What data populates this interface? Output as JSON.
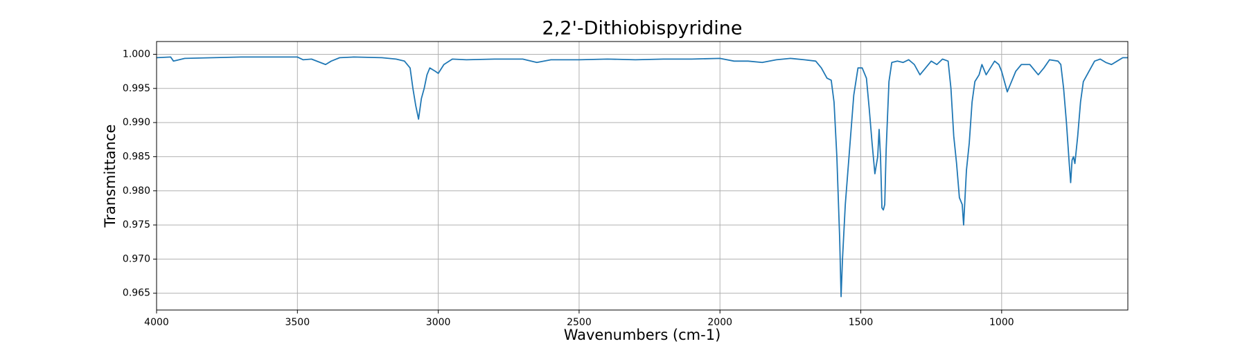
{
  "chart_data": {
    "type": "line",
    "title": "2,2'-Dithiobispyridine",
    "x_label": "Wavenumbers (cm-1)",
    "y_label": "Transmittance",
    "x": [
      4000,
      3950,
      3940,
      3900,
      3800,
      3700,
      3600,
      3500,
      3480,
      3450,
      3400,
      3380,
      3350,
      3300,
      3200,
      3150,
      3120,
      3100,
      3090,
      3080,
      3070,
      3060,
      3050,
      3040,
      3030,
      3010,
      3000,
      2980,
      2950,
      2900,
      2800,
      2700,
      2650,
      2600,
      2500,
      2400,
      2300,
      2200,
      2100,
      2000,
      1950,
      1900,
      1850,
      1800,
      1750,
      1700,
      1660,
      1640,
      1620,
      1605,
      1595,
      1585,
      1575,
      1570,
      1565,
      1555,
      1540,
      1525,
      1510,
      1495,
      1480,
      1470,
      1460,
      1450,
      1440,
      1435,
      1430,
      1425,
      1420,
      1415,
      1410,
      1400,
      1390,
      1370,
      1350,
      1330,
      1310,
      1290,
      1270,
      1250,
      1230,
      1210,
      1190,
      1180,
      1170,
      1160,
      1150,
      1140,
      1135,
      1125,
      1115,
      1105,
      1095,
      1080,
      1070,
      1055,
      1040,
      1025,
      1010,
      1000,
      990,
      980,
      970,
      950,
      930,
      900,
      870,
      850,
      830,
      800,
      790,
      780,
      770,
      760,
      755,
      750,
      745,
      740,
      730,
      720,
      710,
      690,
      670,
      650,
      630,
      610,
      590,
      570,
      552
    ],
    "series": [
      {
        "name": "2,2'-Dithiobispyridine",
        "color": "#1f77b4",
        "values": [
          0.9995,
          0.9996,
          0.999,
          0.9994,
          0.9995,
          0.9996,
          0.9996,
          0.9996,
          0.9992,
          0.9993,
          0.9985,
          0.999,
          0.9995,
          0.9996,
          0.9995,
          0.9993,
          0.999,
          0.998,
          0.995,
          0.9925,
          0.9905,
          0.9935,
          0.995,
          0.997,
          0.998,
          0.9975,
          0.9972,
          0.9985,
          0.9993,
          0.9992,
          0.9993,
          0.9993,
          0.9988,
          0.9992,
          0.9992,
          0.9993,
          0.9992,
          0.9993,
          0.9993,
          0.9994,
          0.999,
          0.999,
          0.9988,
          0.9992,
          0.9994,
          0.9992,
          0.999,
          0.998,
          0.9965,
          0.9962,
          0.993,
          0.985,
          0.973,
          0.9645,
          0.97,
          0.978,
          0.986,
          0.994,
          0.998,
          0.998,
          0.9965,
          0.992,
          0.987,
          0.9825,
          0.985,
          0.989,
          0.985,
          0.9775,
          0.9772,
          0.978,
          0.986,
          0.996,
          0.9988,
          0.999,
          0.9988,
          0.9992,
          0.9985,
          0.997,
          0.998,
          0.999,
          0.9985,
          0.9993,
          0.999,
          0.995,
          0.988,
          0.984,
          0.979,
          0.978,
          0.975,
          0.983,
          0.987,
          0.993,
          0.996,
          0.997,
          0.9985,
          0.997,
          0.998,
          0.999,
          0.9985,
          0.9975,
          0.996,
          0.9945,
          0.9955,
          0.9975,
          0.9985,
          0.9985,
          0.997,
          0.998,
          0.9992,
          0.999,
          0.9985,
          0.995,
          0.99,
          0.984,
          0.9812,
          0.9845,
          0.985,
          0.984,
          0.988,
          0.993,
          0.996,
          0.9975,
          0.999,
          0.9993,
          0.9988,
          0.9985,
          0.999,
          0.9995,
          0.9995
        ]
      }
    ],
    "xlim": [
      4000,
      552
    ],
    "ylim": [
      0.96254,
      1.00187
    ],
    "xticks": [
      4000,
      3500,
      3000,
      2500,
      2000,
      1500,
      1000
    ],
    "yticks": [
      0.965,
      {
        "value": 0.97,
        "label": "0.970"
      },
      0.975,
      {
        "value": 0.98,
        "label": "0.980"
      },
      0.985,
      {
        "value": 0.99,
        "label": "0.990"
      },
      0.995,
      {
        "value": 1.0,
        "label": "1.000"
      }
    ],
    "grid": true
  }
}
